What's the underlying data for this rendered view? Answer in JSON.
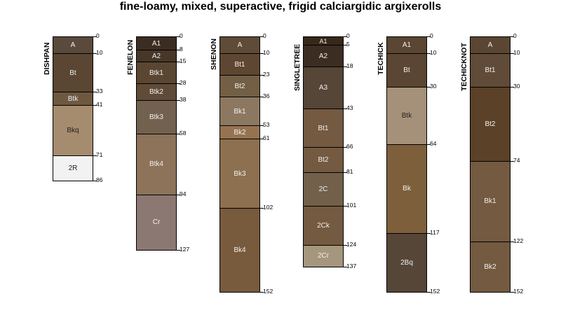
{
  "title": "fine-loamy, mixed, superactive, frigid calciargidic argixerolls",
  "profiles": [
    {
      "name": "DISHPAN",
      "horizons": [
        {
          "name": "A",
          "top": 0,
          "bottom": 10,
          "color": "#5a4a3c",
          "text": "#f0f0f0"
        },
        {
          "name": "Bt",
          "top": 10,
          "bottom": 33,
          "color": "#5a4632",
          "text": "#f0f0f0"
        },
        {
          "name": "Btk",
          "top": 33,
          "bottom": 41,
          "color": "#6e5840",
          "text": "#f0f0f0"
        },
        {
          "name": "Bkq",
          "top": 41,
          "bottom": 71,
          "color": "#a58c6e",
          "text": "#222222"
        },
        {
          "name": "2R",
          "top": 71,
          "bottom": 86,
          "color": "#f2f2f2",
          "text": "#222222"
        }
      ]
    },
    {
      "name": "FENELON",
      "horizons": [
        {
          "name": "A1",
          "top": 0,
          "bottom": 8,
          "color": "#3c2d23",
          "text": "#f0f0f0"
        },
        {
          "name": "A2",
          "top": 8,
          "bottom": 15,
          "color": "#463728",
          "text": "#f0f0f0"
        },
        {
          "name": "Btk1",
          "top": 15,
          "bottom": 28,
          "color": "#5a4632",
          "text": "#f0f0f0"
        },
        {
          "name": "Btk2",
          "top": 28,
          "bottom": 38,
          "color": "#5f4b37",
          "text": "#f0f0f0"
        },
        {
          "name": "Btk3",
          "top": 38,
          "bottom": 58,
          "color": "#73614f",
          "text": "#f0f0f0"
        },
        {
          "name": "Btk4",
          "top": 58,
          "bottom": 94,
          "color": "#8c735a",
          "text": "#f0f0f0"
        },
        {
          "name": "Cr",
          "top": 94,
          "bottom": 127,
          "color": "#8c7873",
          "text": "#f0f0f0"
        }
      ]
    },
    {
      "name": "SHENON",
      "horizons": [
        {
          "name": "A",
          "top": 0,
          "bottom": 10,
          "color": "#5f4b37",
          "text": "#f0f0f0"
        },
        {
          "name": "Bt1",
          "top": 10,
          "bottom": 23,
          "color": "#5f4632",
          "text": "#f0f0f0"
        },
        {
          "name": "Bt2",
          "top": 23,
          "bottom": 36,
          "color": "#735f46",
          "text": "#f0f0f0"
        },
        {
          "name": "Bk1",
          "top": 36,
          "bottom": 53,
          "color": "#8c7860",
          "text": "#f0f0f0"
        },
        {
          "name": "Bk2",
          "top": 53,
          "bottom": 61,
          "color": "#967350",
          "text": "#f0f0f0"
        },
        {
          "name": "Bk3",
          "top": 61,
          "bottom": 102,
          "color": "#8c7050",
          "text": "#f0f0f0"
        },
        {
          "name": "Bk4",
          "top": 102,
          "bottom": 152,
          "color": "#785a3c",
          "text": "#f0f0f0"
        }
      ]
    },
    {
      "name": "SINGLETREE",
      "horizons": [
        {
          "name": "A1",
          "top": 0,
          "bottom": 5,
          "color": "#372819",
          "text": "#f0f0f0"
        },
        {
          "name": "A2",
          "top": 5,
          "bottom": 18,
          "color": "#3c2d23",
          "text": "#f0f0f0"
        },
        {
          "name": "A3",
          "top": 18,
          "bottom": 43,
          "color": "#554637",
          "text": "#f0f0f0"
        },
        {
          "name": "Bt1",
          "top": 43,
          "bottom": 66,
          "color": "#735a41",
          "text": "#f0f0f0"
        },
        {
          "name": "Bt2",
          "top": 66,
          "bottom": 81,
          "color": "#735a41",
          "text": "#f0f0f0"
        },
        {
          "name": "2C",
          "top": 81,
          "bottom": 101,
          "color": "#73604b",
          "text": "#f0f0f0"
        },
        {
          "name": "2Ck",
          "top": 101,
          "bottom": 124,
          "color": "#735a41",
          "text": "#f0f0f0"
        },
        {
          "name": "2Cr",
          "top": 124,
          "bottom": 137,
          "color": "#a5967d",
          "text": "#f0f0f0"
        }
      ]
    },
    {
      "name": "TECHICK",
      "horizons": [
        {
          "name": "A1",
          "top": 0,
          "bottom": 10,
          "color": "#5a4632",
          "text": "#f0f0f0"
        },
        {
          "name": "Bt",
          "top": 10,
          "bottom": 30,
          "color": "#5a4632",
          "text": "#f0f0f0"
        },
        {
          "name": "Btk",
          "top": 30,
          "bottom": 64,
          "color": "#a5917a",
          "text": "#222222"
        },
        {
          "name": "Bk",
          "top": 64,
          "bottom": 117,
          "color": "#7d5f3c",
          "text": "#f0f0f0"
        },
        {
          "name": "2Bq",
          "top": 117,
          "bottom": 152,
          "color": "#554637",
          "text": "#f0f0f0"
        }
      ]
    },
    {
      "name": "TECHICKNOT",
      "horizons": [
        {
          "name": "A",
          "top": 0,
          "bottom": 10,
          "color": "#5a4632",
          "text": "#f0f0f0"
        },
        {
          "name": "Bt1",
          "top": 10,
          "bottom": 30,
          "color": "#5f4b37",
          "text": "#f0f0f0"
        },
        {
          "name": "Bt2",
          "top": 30,
          "bottom": 74,
          "color": "#5a4128",
          "text": "#f0f0f0"
        },
        {
          "name": "Bk1",
          "top": 74,
          "bottom": 122,
          "color": "#735a41",
          "text": "#f0f0f0"
        },
        {
          "name": "Bk2",
          "top": 122,
          "bottom": 152,
          "color": "#735a41",
          "text": "#f0f0f0"
        }
      ]
    }
  ]
}
